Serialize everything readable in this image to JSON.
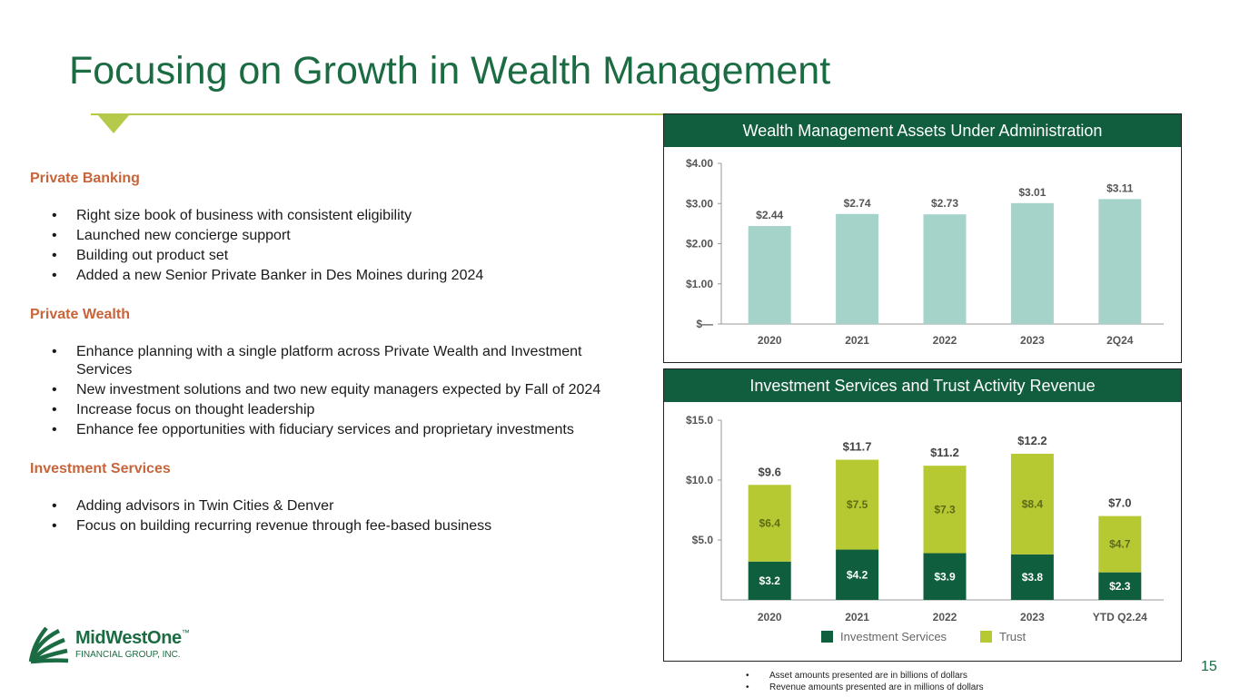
{
  "page": {
    "title": "Focusing on Growth in Wealth Management",
    "page_number": "15"
  },
  "sections": [
    {
      "heading": "Private Banking",
      "bullets": [
        "Right size book of business with consistent eligibility",
        "Launched new concierge support",
        "Building out product set",
        "Added a new Senior Private Banker in Des Moines during 2024"
      ]
    },
    {
      "heading": "Private Wealth",
      "bullets": [
        "Enhance planning with a single platform across Private Wealth and Investment Services",
        "New investment solutions and two new equity managers expected by Fall of 2024",
        "Increase focus on thought leadership",
        "Enhance fee opportunities with fiduciary services and proprietary investments"
      ]
    },
    {
      "heading": "Investment Services",
      "bullets": [
        "Adding advisors in Twin Cities & Denver",
        "Focus on building recurring revenue through fee-based business"
      ]
    }
  ],
  "logo": {
    "name": "MidWestOne",
    "trademark": "™",
    "subtitle": "FINANCIAL GROUP, INC."
  },
  "footnotes": [
    "Asset amounts presented are in billions of dollars",
    "Revenue amounts presented are in millions of dollars"
  ],
  "colors": {
    "brand_green": "#1b6b43",
    "header_green": "#115e3f",
    "aua_bar": "#a5d2c9",
    "trust": "#b6c932",
    "investment": "#0f5e3d",
    "section_orange": "#c8643a"
  },
  "chart_data": [
    {
      "type": "bar",
      "title": "Wealth Management Assets Under Administration",
      "categories": [
        "2020",
        "2021",
        "2022",
        "2023",
        "2Q24"
      ],
      "values": [
        2.44,
        2.74,
        2.73,
        3.01,
        3.11
      ],
      "value_labels": [
        "$2.44",
        "$2.74",
        "$2.73",
        "$3.01",
        "$3.11"
      ],
      "ylim": [
        0,
        4
      ],
      "yticks": [
        0,
        1,
        2,
        3,
        4
      ],
      "ytick_labels": [
        "$—",
        "$1.00",
        "$2.00",
        "$3.00",
        "$4.00"
      ],
      "grid": false
    },
    {
      "type": "bar",
      "stacked": true,
      "title": "Investment Services and Trust Activity Revenue",
      "categories": [
        "2020",
        "2021",
        "2022",
        "2023",
        "YTD Q2.24"
      ],
      "series": [
        {
          "name": "Investment Services",
          "values": [
            3.2,
            4.2,
            3.9,
            3.8,
            2.3
          ],
          "labels": [
            "$3.2",
            "$4.2",
            "$3.9",
            "$3.8",
            "$2.3"
          ]
        },
        {
          "name": "Trust",
          "values": [
            6.4,
            7.5,
            7.3,
            8.4,
            4.7
          ],
          "labels": [
            "$6.4",
            "$7.5",
            "$7.3",
            "$8.4",
            "$4.7"
          ]
        }
      ],
      "totals": [
        9.6,
        11.7,
        11.2,
        12.2,
        7.0
      ],
      "total_labels": [
        "$9.6",
        "$11.7",
        "$11.2",
        "$12.2",
        "$7.0"
      ],
      "ylim": [
        0,
        15
      ],
      "yticks": [
        5,
        10,
        15
      ],
      "ytick_labels": [
        "$5.0",
        "$10.0",
        "$15.0"
      ],
      "legend": "bottom",
      "grid": false
    }
  ]
}
